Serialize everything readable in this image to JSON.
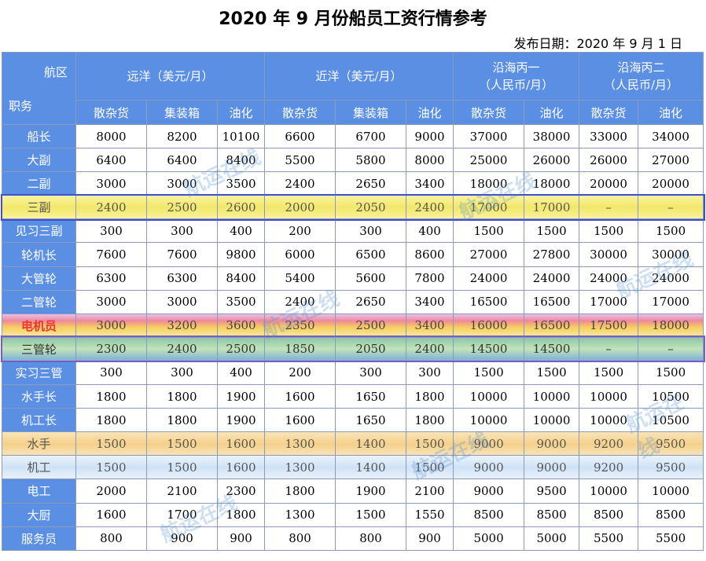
{
  "title": "2020 年 9 月份船员工资行情参考",
  "date": "发布日期：2020 年 9 月 1 日",
  "corner": {
    "top": "航区",
    "bottom": "职务"
  },
  "groups": [
    {
      "label": "远洋（美元/月）",
      "span": 3
    },
    {
      "label": "近洋（美元/月）",
      "span": 3
    },
    {
      "label": "沿海丙一（人民币/月）",
      "span": 2
    },
    {
      "label": "沿海丙二（人民币/月）",
      "span": 2
    }
  ],
  "group_lines": [
    [
      "远洋（美元/月）"
    ],
    [
      "近洋（美元/月）"
    ],
    [
      "沿海丙一",
      "（人民币/月）"
    ],
    [
      "沿海丙二",
      "（人民币/月）"
    ]
  ],
  "subheaders": [
    "散杂货",
    "集装箱",
    "油化",
    "散杂货",
    "集装箱",
    "油化",
    "散杂货",
    "油化",
    "散杂货",
    "油化"
  ],
  "rows": [
    {
      "role": "船长",
      "values": [
        "8000",
        "8200",
        "10100",
        "6600",
        "6700",
        "9000",
        "37000",
        "38000",
        "33000",
        "34000"
      ]
    },
    {
      "role": "大副",
      "values": [
        "6400",
        "6400",
        "8400",
        "5500",
        "5800",
        "8000",
        "25000",
        "26000",
        "26000",
        "27000"
      ]
    },
    {
      "role": "二副",
      "values": [
        "3000",
        "3000",
        "3500",
        "2400",
        "2650",
        "3400",
        "18000",
        "18000",
        "20000",
        "20000"
      ]
    },
    {
      "role": "三副",
      "values": [
        "2400",
        "2500",
        "2600",
        "2000",
        "2050",
        "2400",
        "17000",
        "17000",
        "–",
        "–"
      ],
      "hl": "yellow"
    },
    {
      "role": "见习三副",
      "values": [
        "300",
        "300",
        "400",
        "200",
        "300",
        "400",
        "1500",
        "1500",
        "1500",
        "1500"
      ]
    },
    {
      "role": "轮机长",
      "values": [
        "7600",
        "7600",
        "9800",
        "6000",
        "6500",
        "8600",
        "27000",
        "27800",
        "30000",
        "30000"
      ]
    },
    {
      "role": "大管轮",
      "values": [
        "6300",
        "6300",
        "8400",
        "5400",
        "5600",
        "7800",
        "24000",
        "24000",
        "24000",
        "24000"
      ]
    },
    {
      "role": "二管轮",
      "values": [
        "3000",
        "3000",
        "3500",
        "2400",
        "2650",
        "3400",
        "16500",
        "16500",
        "17000",
        "17000"
      ]
    },
    {
      "role": "电机员",
      "values": [
        "3000",
        "3200",
        "3600",
        "2350",
        "2500",
        "3400",
        "16000",
        "16500",
        "17500",
        "18000"
      ],
      "hl": "rainbow"
    },
    {
      "role": "三管轮",
      "values": [
        "2300",
        "2400",
        "2500",
        "1850",
        "2050",
        "2400",
        "14500",
        "14500",
        "–",
        "–"
      ],
      "hl": "green"
    },
    {
      "role": "实习三管",
      "values": [
        "300",
        "300",
        "400",
        "200",
        "300",
        "300",
        "1500",
        "1500",
        "1500",
        "1500"
      ]
    },
    {
      "role": "水手长",
      "values": [
        "1800",
        "1800",
        "1900",
        "1600",
        "1650",
        "1800",
        "10000",
        "10000",
        "10000",
        "10500"
      ]
    },
    {
      "role": "机工长",
      "values": [
        "1800",
        "1800",
        "1900",
        "1600",
        "1650",
        "1800",
        "10000",
        "10000",
        "10000",
        "10500"
      ]
    },
    {
      "role": "水手",
      "values": [
        "1500",
        "1500",
        "1600",
        "1300",
        "1400",
        "1500",
        "9000",
        "9000",
        "9200",
        "9500"
      ],
      "hl": "orange"
    },
    {
      "role": "机工",
      "values": [
        "1500",
        "1500",
        "1600",
        "1300",
        "1400",
        "1500",
        "9000",
        "9000",
        "9200",
        "9500"
      ],
      "hl": "blue"
    },
    {
      "role": "电工",
      "values": [
        "2000",
        "2100",
        "2300",
        "1800",
        "1900",
        "2100",
        "9000",
        "9500",
        "10000",
        "10000"
      ]
    },
    {
      "role": "大厨",
      "values": [
        "1600",
        "1700",
        "1800",
        "1300",
        "1500",
        "1550",
        "8500",
        "8500",
        "8500",
        "8500"
      ]
    },
    {
      "role": "服务员",
      "values": [
        "800",
        "900",
        "900",
        "800",
        "800",
        "900",
        "5000",
        "5000",
        "5500",
        "5500"
      ]
    }
  ],
  "watermark": "航运在线"
}
